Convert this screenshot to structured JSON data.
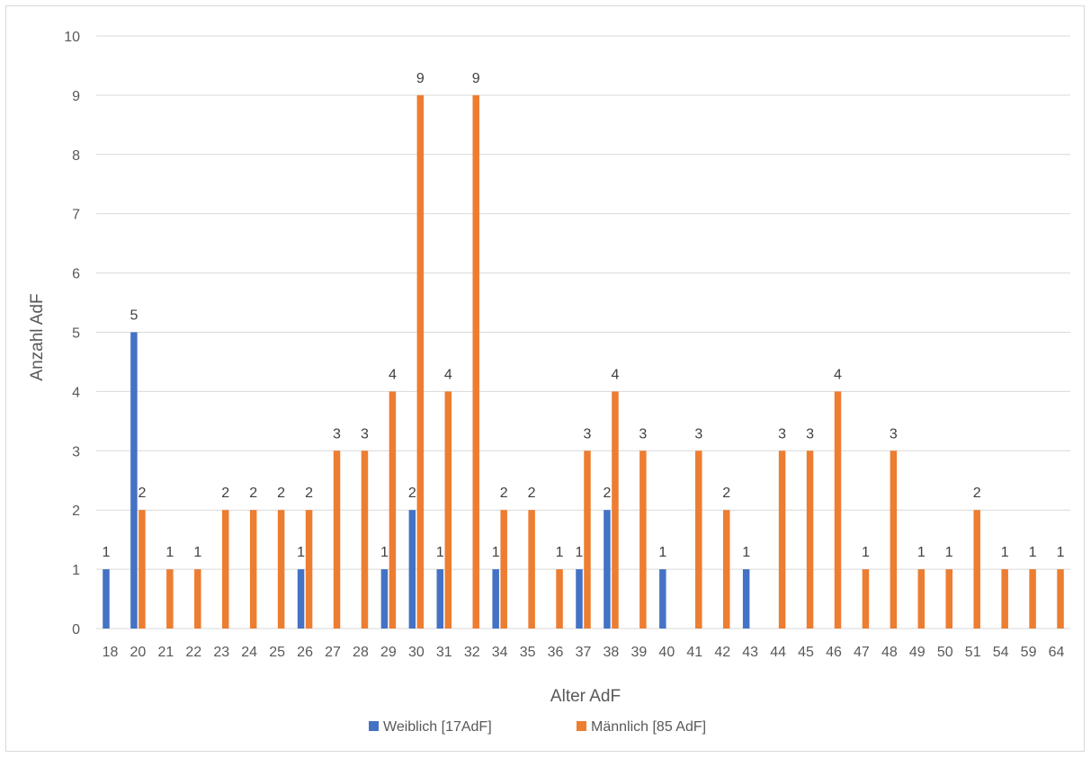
{
  "chart_data": {
    "type": "bar",
    "title": "",
    "xlabel": "Alter AdF",
    "ylabel": "Anzahl AdF",
    "ylim": [
      0,
      10
    ],
    "yticks": [
      0,
      1,
      2,
      3,
      4,
      5,
      6,
      7,
      8,
      9,
      10
    ],
    "grid": true,
    "legend_position": "bottom",
    "categories": [
      "18",
      "20",
      "21",
      "22",
      "23",
      "24",
      "25",
      "26",
      "27",
      "28",
      "29",
      "30",
      "31",
      "32",
      "34",
      "35",
      "36",
      "37",
      "38",
      "39",
      "40",
      "41",
      "42",
      "43",
      "44",
      "45",
      "46",
      "47",
      "48",
      "49",
      "50",
      "51",
      "54",
      "59",
      "64"
    ],
    "series": [
      {
        "name": "Weiblich [17AdF]",
        "color": "#4472c4",
        "values": [
          1,
          5,
          null,
          null,
          null,
          null,
          null,
          1,
          null,
          null,
          1,
          2,
          1,
          null,
          1,
          null,
          null,
          1,
          2,
          null,
          1,
          null,
          null,
          1,
          null,
          null,
          null,
          null,
          null,
          null,
          null,
          null,
          null,
          null,
          null
        ]
      },
      {
        "name": "Männlich [85 AdF]",
        "color": "#ed7d31",
        "values": [
          null,
          2,
          1,
          1,
          2,
          2,
          2,
          2,
          3,
          3,
          4,
          9,
          4,
          9,
          2,
          2,
          1,
          3,
          4,
          3,
          null,
          3,
          2,
          null,
          3,
          3,
          4,
          1,
          3,
          1,
          1,
          2,
          1,
          1,
          1
        ]
      }
    ]
  }
}
